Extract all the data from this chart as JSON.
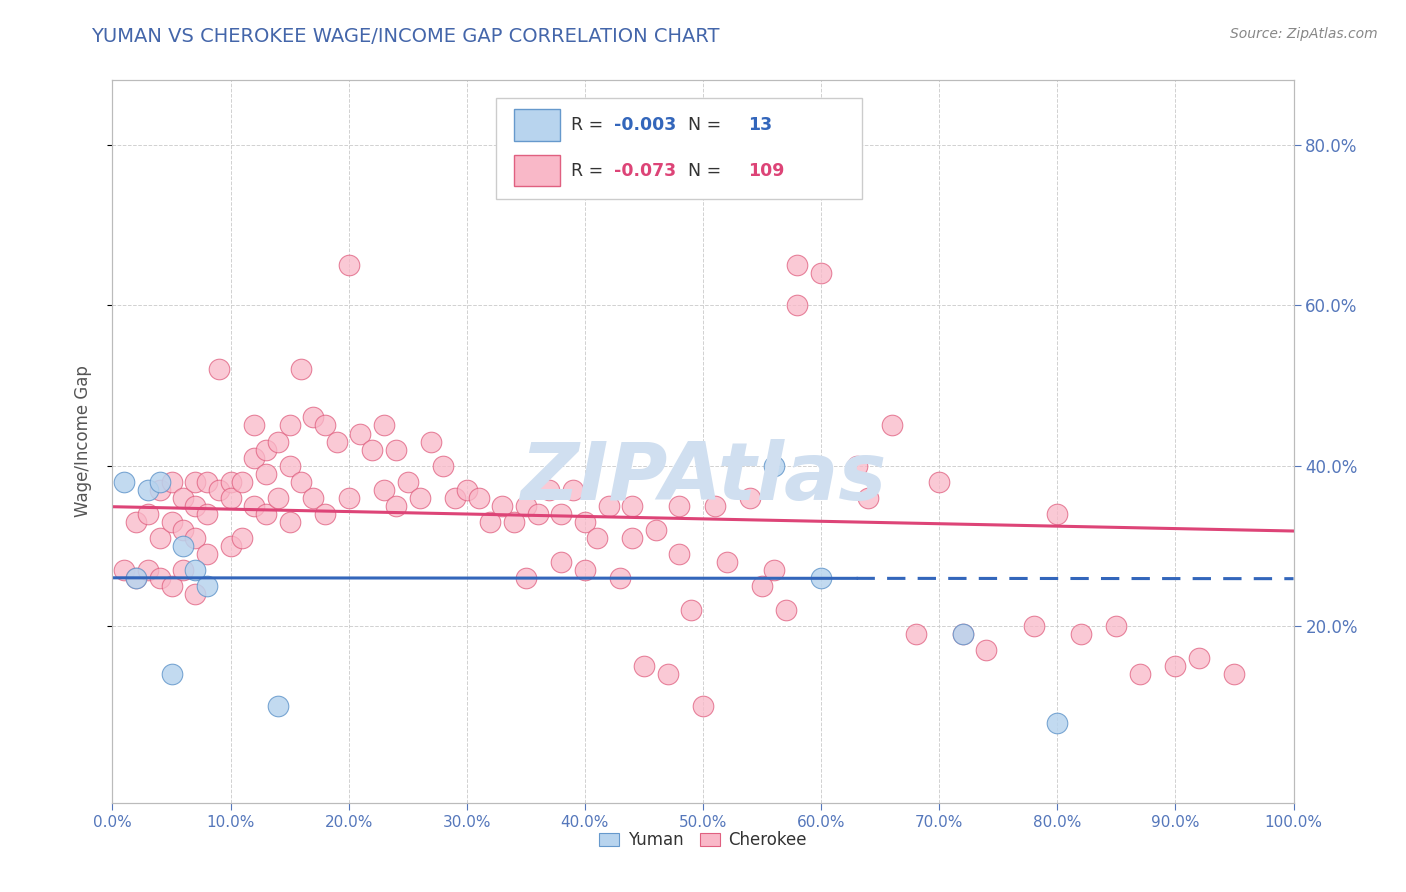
{
  "title": "YUMAN VS CHEROKEE WAGE/INCOME GAP CORRELATION CHART",
  "source": "Source: ZipAtlas.com",
  "ylabel": "Wage/Income Gap",
  "xlabel_legend_yuman": "Yuman",
  "xlabel_legend_cherokee": "Cherokee",
  "xmin": 0.0,
  "xmax": 1.0,
  "ymin": -0.02,
  "ymax": 0.88,
  "yticks": [
    0.2,
    0.4,
    0.6,
    0.8
  ],
  "xticks": [
    0.0,
    0.1,
    0.2,
    0.3,
    0.4,
    0.5,
    0.6,
    0.7,
    0.8,
    0.9,
    1.0
  ],
  "legend_yuman_R": -0.003,
  "legend_yuman_N": 13,
  "legend_cherokee_R": -0.073,
  "legend_cherokee_N": 109,
  "yuman_fill_color": "#b8d4ee",
  "cherokee_fill_color": "#f9b8c8",
  "yuman_edge_color": "#6699cc",
  "cherokee_edge_color": "#e06080",
  "yuman_line_color": "#3366bb",
  "cherokee_line_color": "#dd4477",
  "title_color": "#4466aa",
  "source_color": "#888888",
  "ylabel_color": "#555555",
  "watermark_text": "ZIPAtlas",
  "watermark_color": "#d0dff0",
  "background_color": "#ffffff",
  "grid_color": "#cccccc",
  "tick_color": "#5577bb",
  "yuman_x": [
    0.01,
    0.02,
    0.03,
    0.04,
    0.05,
    0.06,
    0.07,
    0.08,
    0.14,
    0.56,
    0.6,
    0.72,
    0.8
  ],
  "yuman_y": [
    0.38,
    0.26,
    0.37,
    0.38,
    0.14,
    0.3,
    0.27,
    0.25,
    0.1,
    0.4,
    0.26,
    0.19,
    0.08
  ],
  "cherokee_x": [
    0.01,
    0.02,
    0.02,
    0.03,
    0.03,
    0.04,
    0.04,
    0.04,
    0.05,
    0.05,
    0.05,
    0.06,
    0.06,
    0.06,
    0.07,
    0.07,
    0.07,
    0.07,
    0.08,
    0.08,
    0.08,
    0.09,
    0.09,
    0.1,
    0.1,
    0.1,
    0.11,
    0.11,
    0.12,
    0.12,
    0.12,
    0.13,
    0.13,
    0.13,
    0.14,
    0.14,
    0.15,
    0.15,
    0.15,
    0.16,
    0.16,
    0.17,
    0.17,
    0.18,
    0.18,
    0.19,
    0.2,
    0.2,
    0.21,
    0.22,
    0.23,
    0.23,
    0.24,
    0.24,
    0.25,
    0.26,
    0.27,
    0.28,
    0.29,
    0.3,
    0.31,
    0.32,
    0.33,
    0.34,
    0.35,
    0.35,
    0.36,
    0.37,
    0.38,
    0.38,
    0.39,
    0.4,
    0.4,
    0.41,
    0.42,
    0.43,
    0.44,
    0.44,
    0.45,
    0.46,
    0.47,
    0.48,
    0.48,
    0.49,
    0.5,
    0.51,
    0.52,
    0.54,
    0.55,
    0.56,
    0.57,
    0.58,
    0.58,
    0.6,
    0.63,
    0.64,
    0.66,
    0.68,
    0.7,
    0.72,
    0.74,
    0.78,
    0.8,
    0.82,
    0.85,
    0.87,
    0.9,
    0.92,
    0.95
  ],
  "cherokee_y": [
    0.27,
    0.33,
    0.26,
    0.34,
    0.27,
    0.37,
    0.31,
    0.26,
    0.38,
    0.33,
    0.25,
    0.36,
    0.32,
    0.27,
    0.38,
    0.35,
    0.31,
    0.24,
    0.38,
    0.34,
    0.29,
    0.52,
    0.37,
    0.38,
    0.36,
    0.3,
    0.38,
    0.31,
    0.45,
    0.41,
    0.35,
    0.42,
    0.39,
    0.34,
    0.43,
    0.36,
    0.45,
    0.4,
    0.33,
    0.52,
    0.38,
    0.46,
    0.36,
    0.45,
    0.34,
    0.43,
    0.65,
    0.36,
    0.44,
    0.42,
    0.45,
    0.37,
    0.42,
    0.35,
    0.38,
    0.36,
    0.43,
    0.4,
    0.36,
    0.37,
    0.36,
    0.33,
    0.35,
    0.33,
    0.35,
    0.26,
    0.34,
    0.37,
    0.34,
    0.28,
    0.37,
    0.33,
    0.27,
    0.31,
    0.35,
    0.26,
    0.35,
    0.31,
    0.15,
    0.32,
    0.14,
    0.35,
    0.29,
    0.22,
    0.1,
    0.35,
    0.28,
    0.36,
    0.25,
    0.27,
    0.22,
    0.65,
    0.6,
    0.64,
    0.4,
    0.36,
    0.45,
    0.19,
    0.38,
    0.19,
    0.17,
    0.2,
    0.34,
    0.19,
    0.2,
    0.14,
    0.15,
    0.16,
    0.14
  ]
}
